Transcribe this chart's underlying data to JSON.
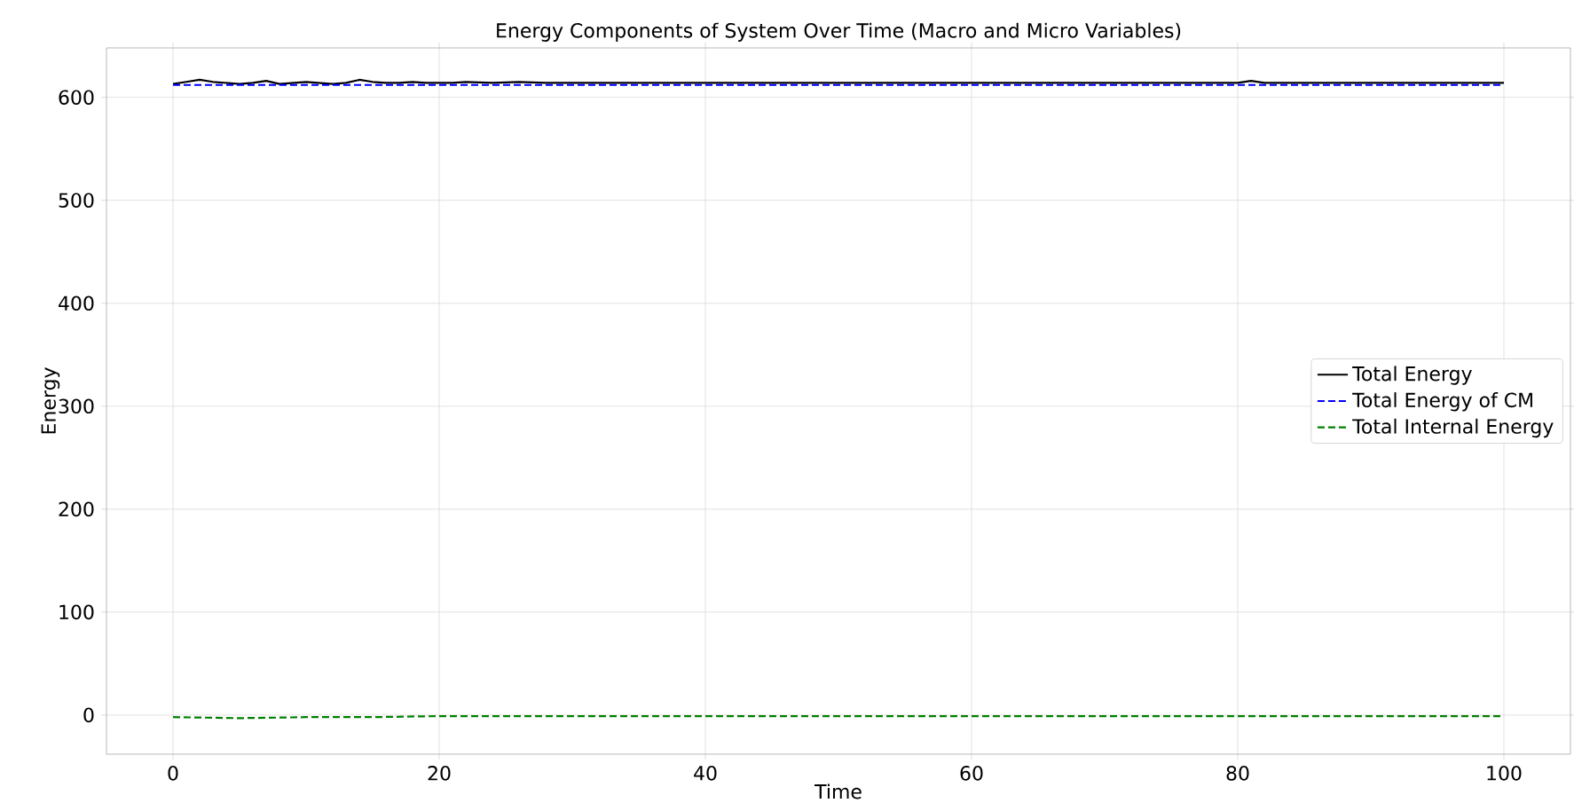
{
  "chart_data": {
    "type": "line",
    "title": "Energy Components of System Over Time (Macro and Micro Variables)",
    "xlabel": "Time",
    "ylabel": "Energy",
    "xlim": [
      -5,
      105
    ],
    "ylim": [
      -38,
      648
    ],
    "xticks": [
      0,
      20,
      40,
      60,
      80,
      100
    ],
    "yticks": [
      0,
      100,
      200,
      300,
      400,
      500,
      600
    ],
    "grid": true,
    "legend": "right",
    "marker": "none",
    "series": [
      {
        "name": "Total Energy",
        "color": "#000000",
        "line_style": "solid",
        "x": [
          0,
          1,
          2,
          3,
          4,
          5,
          6,
          7,
          8,
          9,
          10,
          11,
          12,
          13,
          14,
          15,
          16,
          17,
          18,
          19,
          20,
          21,
          22,
          24,
          26,
          28,
          30,
          35,
          40,
          45,
          50,
          55,
          60,
          65,
          70,
          75,
          80,
          81,
          82,
          85,
          90,
          95,
          100
        ],
        "values": [
          613,
          615,
          617,
          615,
          614,
          613,
          614,
          616,
          613,
          614,
          615,
          614,
          613,
          614,
          617,
          615,
          614,
          614,
          615,
          614,
          614,
          614,
          615,
          614,
          615,
          614,
          614,
          614,
          614,
          614,
          614,
          614,
          614,
          614,
          614,
          614,
          614,
          616,
          614,
          614,
          614,
          614,
          614
        ]
      },
      {
        "name": "Total Energy of CM",
        "color": "#0000ff",
        "line_style": "dashed",
        "x": [
          0,
          20,
          40,
          60,
          80,
          100
        ],
        "values": [
          612,
          612,
          612,
          612,
          612,
          612
        ]
      },
      {
        "name": "Total Internal Energy",
        "color": "#008000",
        "line_style": "dashed",
        "x": [
          0,
          5,
          10,
          15,
          20,
          40,
          60,
          80,
          100
        ],
        "values": [
          -2,
          -3,
          -2,
          -2,
          -1,
          -1,
          -1,
          -1,
          -1
        ]
      }
    ]
  }
}
